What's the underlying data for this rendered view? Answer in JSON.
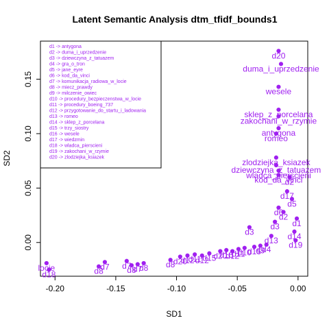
{
  "chart_data": {
    "type": "scatter",
    "title": "Latent Semantic Analysis dtm_tfidf_bounds1",
    "xlabel": "SD1",
    "ylabel": "SD2",
    "xlim": [
      -0.212,
      0.008
    ],
    "ylim": [
      -0.031,
      0.185
    ],
    "x_ticks": [
      -0.2,
      -0.15,
      -0.1,
      -0.05,
      0.0
    ],
    "x_tick_labels": [
      "-0.20",
      "-0.15",
      "-0.10",
      "-0.05",
      "0.00"
    ],
    "y_ticks": [
      0.0,
      0.05,
      0.1,
      0.15
    ],
    "y_tick_labels": [
      "0.00",
      "0.05",
      "0.10",
      "0.15"
    ],
    "grid": false,
    "point_color": "#a020f0",
    "legend_placement": "top-left",
    "legend": [
      "d1 -> antygona",
      "d2 -> duma_i_uprzedzenie",
      "d3 -> dziewczyna_z_tatuazem",
      "d4 -> gra_o_tron",
      "d5 -> jane_eyre",
      "d6 -> kod_da_vinci",
      "d7 -> komunikacja_radiowa_w_locie",
      "d8 -> miecz_prawdy",
      "d9 -> milczenie_owiec",
      "d10 -> procedury_bezpieczenstwa_w_locie",
      "d11 -> procedury_boeing_737",
      "d12 -> przygotowanie_do_startu_i_ladowania",
      "d13 -> romeo",
      "d14 -> sklep_z_porcelana",
      "d15 -> trzy_siostry",
      "d16 -> wesele",
      "d17 -> wiedzmin",
      "d18 -> wladca_pierscieni",
      "d19 -> zakochani_w_rzymie",
      "d20 -> zlodziejka_ksiazek"
    ],
    "points": [
      {
        "x": -0.205,
        "y": -0.025,
        "label": "d18"
      },
      {
        "x": -0.159,
        "y": -0.018,
        "label": "d7"
      },
      {
        "x": -0.164,
        "y": -0.022,
        "label": "d8"
      },
      {
        "x": -0.141,
        "y": -0.017,
        "label": "d7"
      },
      {
        "x": -0.137,
        "y": -0.021,
        "label": "d8"
      },
      {
        "x": -0.132,
        "y": -0.02,
        "label": "d7"
      },
      {
        "x": -0.127,
        "y": -0.019,
        "label": "d8"
      },
      {
        "x": -0.105,
        "y": -0.016,
        "label": "d8"
      },
      {
        "x": -0.097,
        "y": -0.013,
        "label": "d20"
      },
      {
        "x": -0.091,
        "y": -0.012,
        "label": "d12"
      },
      {
        "x": -0.085,
        "y": -0.011,
        "label": "d11"
      },
      {
        "x": -0.079,
        "y": -0.012,
        "label": "d12"
      },
      {
        "x": -0.073,
        "y": -0.01,
        "label": "d15"
      },
      {
        "x": -0.064,
        "y": -0.008,
        "label": "d20"
      },
      {
        "x": -0.059,
        "y": -0.007,
        "label": "d16"
      },
      {
        "x": -0.054,
        "y": -0.008,
        "label": "d12"
      },
      {
        "x": -0.049,
        "y": -0.006,
        "label": "d11"
      },
      {
        "x": -0.044,
        "y": -0.005,
        "label": "d10"
      },
      {
        "x": -0.04,
        "y": 0.014,
        "label": "d3"
      },
      {
        "x": -0.036,
        "y": -0.004,
        "label": "d15"
      },
      {
        "x": -0.031,
        "y": -0.003,
        "label": "d9"
      },
      {
        "x": -0.026,
        "y": -0.002,
        "label": "d4"
      },
      {
        "x": -0.022,
        "y": 0.006,
        "label": "d13"
      },
      {
        "x": -0.019,
        "y": 0.019,
        "label": "d3"
      },
      {
        "x": -0.016,
        "y": 0.032,
        "label": "d6"
      },
      {
        "x": -0.012,
        "y": 0.028,
        "label": "d2"
      },
      {
        "x": -0.009,
        "y": 0.047,
        "label": "d17"
      },
      {
        "x": -0.007,
        "y": 0.06,
        "label": "d2"
      },
      {
        "x": -0.005,
        "y": 0.04,
        "label": "d5"
      },
      {
        "x": -0.003,
        "y": 0.01,
        "label": "d14"
      },
      {
        "x": -0.002,
        "y": 0.002,
        "label": "d19"
      },
      {
        "x": -0.001,
        "y": 0.022,
        "label": "d1"
      },
      {
        "x": -0.014,
        "y": 0.164,
        "label": "duma_i_uprzedzenie"
      },
      {
        "x": -0.016,
        "y": 0.176,
        "label": "d20"
      },
      {
        "x": -0.016,
        "y": 0.143,
        "label": "wesele"
      },
      {
        "x": -0.016,
        "y": 0.122,
        "label": "sklep_z_porcelana"
      },
      {
        "x": -0.016,
        "y": 0.116,
        "label": "zakochani_w_rzymie"
      },
      {
        "x": -0.016,
        "y": 0.105,
        "label": "antygona"
      },
      {
        "x": -0.018,
        "y": 0.1,
        "label": "romeo"
      },
      {
        "x": -0.018,
        "y": 0.078,
        "label": "zlodziejka_ksiazek"
      },
      {
        "x": -0.018,
        "y": 0.071,
        "label": "dziewczyna_z_tatuazem"
      },
      {
        "x": -0.016,
        "y": 0.066,
        "label": "wladca_pierscieni"
      },
      {
        "x": -0.016,
        "y": 0.062,
        "label": "kod_da_vinci"
      },
      {
        "x": -0.207,
        "y": -0.019,
        "label": "locie"
      }
    ]
  }
}
